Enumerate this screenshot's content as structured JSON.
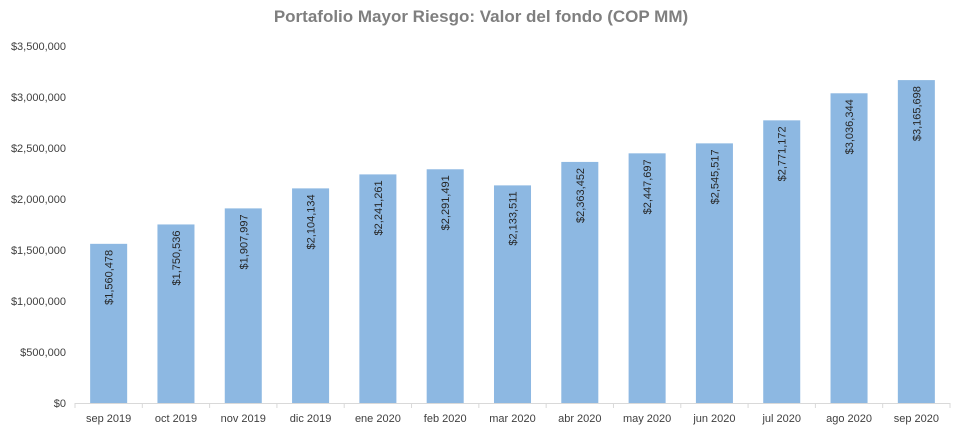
{
  "chart_data": {
    "type": "bar",
    "title": "Portafolio Mayor Riesgo: Valor del fondo (COP MM)",
    "xlabel": "",
    "ylabel": "",
    "ylim": [
      0,
      3500000
    ],
    "yticks": [
      "$0",
      "$500,000",
      "$1,000,000",
      "$1,500,000",
      "$2,000,000",
      "$2,500,000",
      "$3,000,000",
      "$3,500,000"
    ],
    "grid": false,
    "legend": "none",
    "bar_color": "#8db8e2",
    "categories": [
      "sep 2019",
      "oct 2019",
      "nov 2019",
      "dic 2019",
      "ene 2020",
      "feb 2020",
      "mar 2020",
      "abr 2020",
      "may 2020",
      "jun 2020",
      "jul 2020",
      "ago 2020",
      "sep 2020"
    ],
    "values": [
      1560478,
      1750536,
      1907997,
      2104134,
      2241261,
      2291491,
      2133511,
      2363452,
      2447697,
      2545517,
      2771172,
      3036344,
      3165698
    ],
    "data_labels": [
      "$1,560,478",
      "$1,750,536",
      "$1,907,997",
      "$2,104,134",
      "$2,241,261",
      "$2,291,491",
      "$2,133,511",
      "$2,363,452",
      "$2,447,697",
      "$2,545,517",
      "$2,771,172",
      "$3,036,344",
      "$3,165,698"
    ]
  }
}
